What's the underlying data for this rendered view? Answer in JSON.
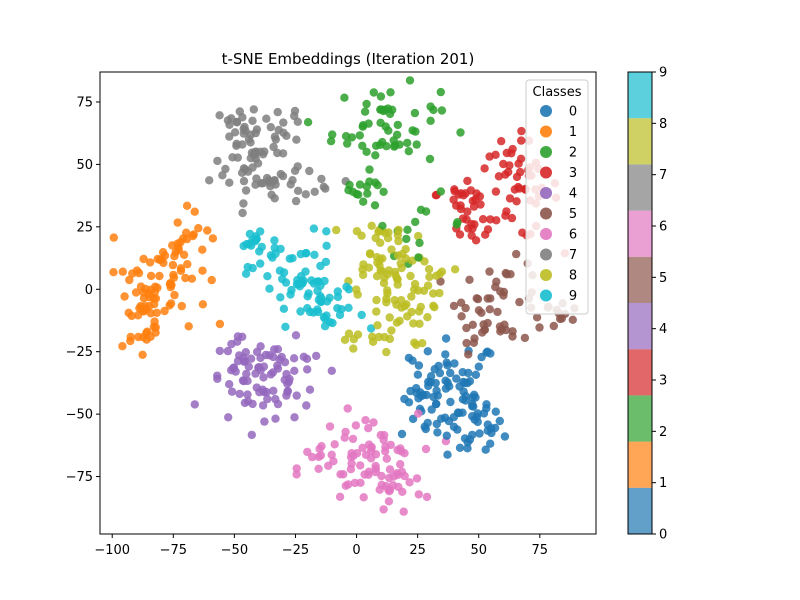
{
  "chart_data": {
    "type": "scatter",
    "title": "t-SNE Embeddings (Iteration 201)",
    "xlabel": "",
    "ylabel": "",
    "xlim": [
      -105,
      98
    ],
    "ylim": [
      -98,
      87
    ],
    "xticks": [
      -100,
      -75,
      -50,
      -25,
      0,
      25,
      50,
      75
    ],
    "yticks": [
      -75,
      -50,
      -25,
      0,
      25,
      50,
      75
    ],
    "grid": false,
    "legend": {
      "title": "Classes",
      "placement": "top-right",
      "entries": [
        "0",
        "1",
        "2",
        "3",
        "4",
        "5",
        "6",
        "7",
        "8",
        "9"
      ]
    },
    "colorbar": {
      "ticks": [
        "0",
        "1",
        "2",
        "3",
        "4",
        "5",
        "6",
        "7",
        "8",
        "9"
      ],
      "range": [
        0,
        9
      ]
    },
    "series": [
      {
        "name": "0",
        "color": "#1f77b4",
        "clusters": [
          {
            "center": [
              40,
              -40
            ],
            "spread": [
              9,
              10
            ],
            "count": 60
          },
          {
            "center": [
              48,
              -55
            ],
            "spread": [
              6,
              7
            ],
            "count": 30
          },
          {
            "center": [
              30,
              -46
            ],
            "spread": [
              6,
              8
            ],
            "count": 20
          }
        ]
      },
      {
        "name": "1",
        "color": "#ff7f0e",
        "clusters": [
          {
            "center": [
              -88,
              -6
            ],
            "spread": [
              5,
              12
            ],
            "count": 45
          },
          {
            "center": [
              -75,
              8
            ],
            "spread": [
              7,
              11
            ],
            "count": 45
          },
          {
            "center": [
              -66,
              22
            ],
            "spread": [
              4,
              4
            ],
            "count": 10
          }
        ]
      },
      {
        "name": "2",
        "color": "#2ca02c",
        "clusters": [
          {
            "center": [
              12,
              65
            ],
            "spread": [
              11,
              8
            ],
            "count": 55
          },
          {
            "center": [
              3,
              40
            ],
            "spread": [
              6,
              4
            ],
            "count": 12
          },
          {
            "center": [
              25,
              26
            ],
            "spread": [
              10,
              6
            ],
            "count": 15
          }
        ]
      },
      {
        "name": "3",
        "color": "#d62728",
        "clusters": [
          {
            "center": [
              65,
              40
            ],
            "spread": [
              9,
              10
            ],
            "count": 55
          },
          {
            "center": [
              43,
              38
            ],
            "spread": [
              5,
              4
            ],
            "count": 15
          },
          {
            "center": [
              48,
              27
            ],
            "spread": [
              6,
              5
            ],
            "count": 15
          }
        ]
      },
      {
        "name": "4",
        "color": "#9467bd",
        "clusters": [
          {
            "center": [
              -45,
              -38
            ],
            "spread": [
              8,
              9
            ],
            "count": 45
          },
          {
            "center": [
              -27,
              -38
            ],
            "spread": [
              7,
              8
            ],
            "count": 30
          },
          {
            "center": [
              -40,
              -28
            ],
            "spread": [
              6,
              5
            ],
            "count": 12
          }
        ]
      },
      {
        "name": "5",
        "color": "#8c564b",
        "clusters": [
          {
            "center": [
              60,
              -5
            ],
            "spread": [
              9,
              8
            ],
            "count": 40
          },
          {
            "center": [
              82,
              -10
            ],
            "spread": [
              5,
              4
            ],
            "count": 12
          },
          {
            "center": [
              48,
              -10
            ],
            "spread": [
              4,
              4
            ],
            "count": 10
          }
        ]
      },
      {
        "name": "6",
        "color": "#e377c2",
        "clusters": [
          {
            "center": [
              5,
              -68
            ],
            "spread": [
              10,
              9
            ],
            "count": 60
          },
          {
            "center": [
              -12,
              -72
            ],
            "spread": [
              6,
              6
            ],
            "count": 15
          },
          {
            "center": [
              15,
              -80
            ],
            "spread": [
              6,
              5
            ],
            "count": 15
          }
        ]
      },
      {
        "name": "7",
        "color": "#7f7f7f",
        "clusters": [
          {
            "center": [
              -45,
              60
            ],
            "spread": [
              7,
              9
            ],
            "count": 45
          },
          {
            "center": [
              -37,
              42
            ],
            "spread": [
              8,
              7
            ],
            "count": 30
          },
          {
            "center": [
              -30,
              67
            ],
            "spread": [
              5,
              5
            ],
            "count": 12
          },
          {
            "center": [
              -14,
              43
            ],
            "spread": [
              4,
              3
            ],
            "count": 8
          }
        ]
      },
      {
        "name": "8",
        "color": "#bcbd22",
        "clusters": [
          {
            "center": [
              10,
              15
            ],
            "spread": [
              7,
              8
            ],
            "count": 40
          },
          {
            "center": [
              15,
              -5
            ],
            "spread": [
              8,
              9
            ],
            "count": 40
          },
          {
            "center": [
              27,
              2
            ],
            "spread": [
              6,
              6
            ],
            "count": 15
          },
          {
            "center": [
              5,
              -20
            ],
            "spread": [
              5,
              4
            ],
            "count": 12
          }
        ]
      },
      {
        "name": "9",
        "color": "#17becf",
        "clusters": [
          {
            "center": [
              -25,
              5
            ],
            "spread": [
              9,
              9
            ],
            "count": 55
          },
          {
            "center": [
              -10,
              -10
            ],
            "spread": [
              7,
              6
            ],
            "count": 25
          },
          {
            "center": [
              -40,
              20
            ],
            "spread": [
              6,
              3
            ],
            "count": 12
          }
        ]
      }
    ]
  }
}
